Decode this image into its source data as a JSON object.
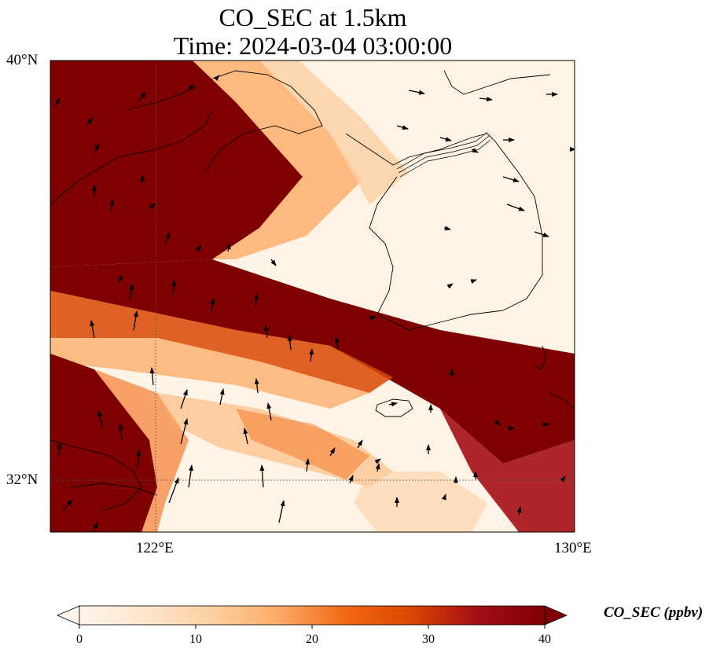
{
  "title": {
    "line1": "CO_SEC at 1.5km",
    "line2": "Time: 2024-03-04 03:00:00"
  },
  "axes": {
    "y_ticks": [
      "40°N",
      "32°N"
    ],
    "x_ticks": [
      "122°E",
      "130°E"
    ],
    "lon_range": [
      120,
      130
    ],
    "lat_range": [
      31,
      40
    ]
  },
  "colorbar": {
    "label": "CO_SEC (ppbv)",
    "ticks": [
      "0",
      "10",
      "20",
      "30",
      "40"
    ],
    "range": [
      0,
      40
    ],
    "extend": "both",
    "colormap": [
      "#fff5eb",
      "#fee6ce",
      "#fdd0a2",
      "#fdae6b",
      "#f16913",
      "#d94801",
      "#a50f15",
      "#7f0000"
    ]
  },
  "gridlines": "dotted at 122°E and 32°N",
  "coastline_color": "#000000"
}
